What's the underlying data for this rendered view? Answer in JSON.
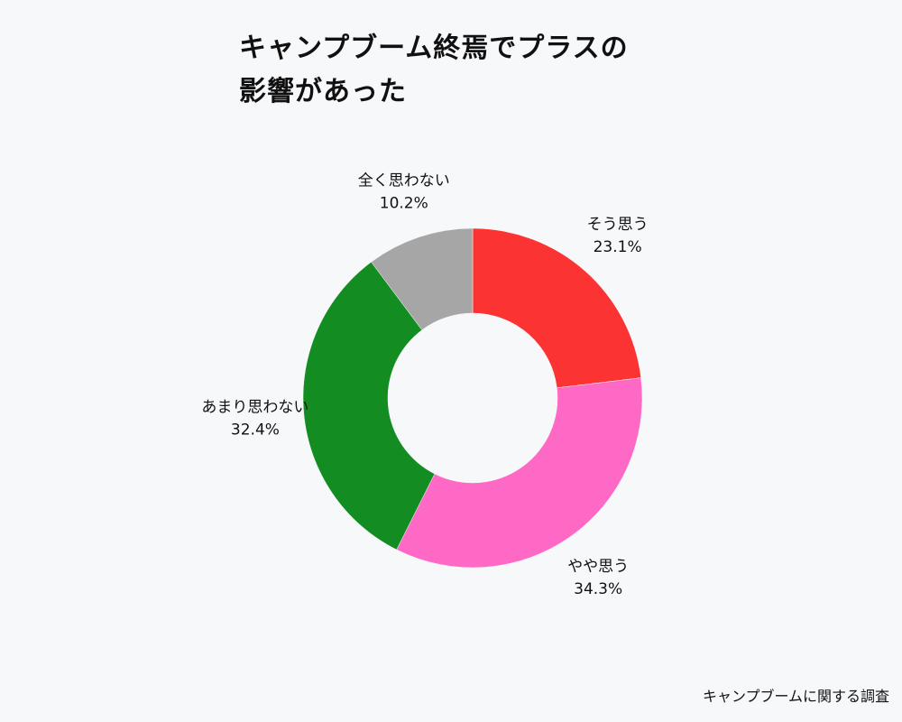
{
  "title_lines": [
    "キャンプブーム終焉でプラスの",
    "影響があった"
  ],
  "source": "キャンプブームに関する調査",
  "chart_data": {
    "type": "pie",
    "donut": true,
    "slices": [
      {
        "label": "そう思う",
        "value": 23.1,
        "value_label": "23.1%",
        "color": "#fb3333"
      },
      {
        "label": "やや思う",
        "value": 34.3,
        "value_label": "34.3%",
        "color": "#ff69c6"
      },
      {
        "label": "あまり思わない",
        "value": 32.4,
        "value_label": "32.4%",
        "color": "#138d22"
      },
      {
        "label": "全く思わない",
        "value": 10.2,
        "value_label": "10.2%",
        "color": "#a6a6a6"
      }
    ]
  }
}
